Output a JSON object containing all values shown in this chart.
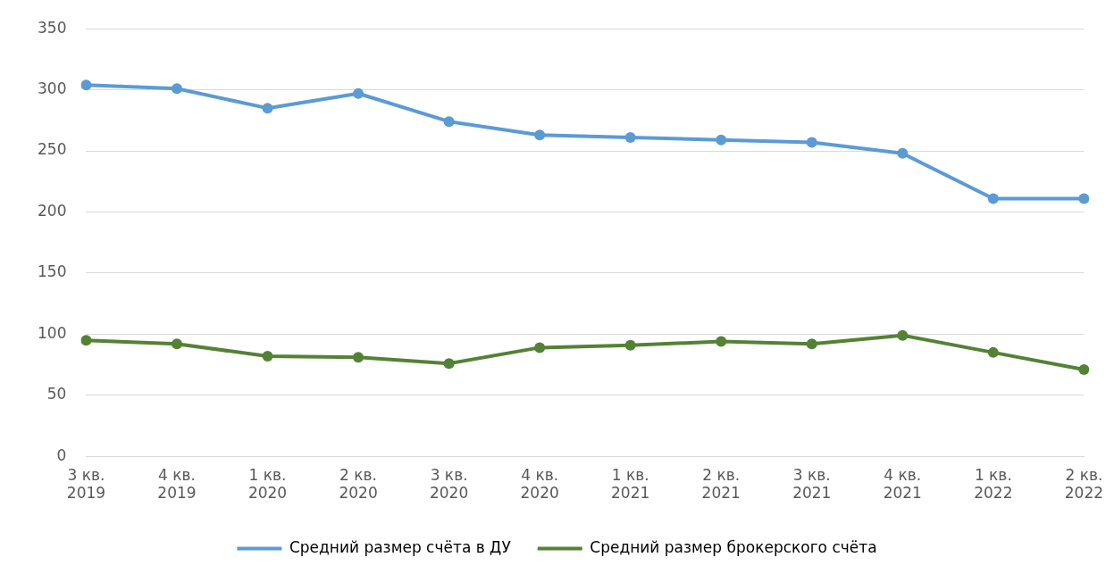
{
  "chart_data": {
    "type": "line",
    "categories": [
      "3 кв. 2019",
      "4 кв. 2019",
      "1 кв. 2020",
      "2 кв. 2020",
      "3 кв. 2020",
      "4 кв. 2020",
      "1 кв. 2021",
      "2 кв. 2021",
      "3 кв. 2021",
      "4 кв. 2021",
      "1 кв. 2022",
      "2 кв. 2022"
    ],
    "series": [
      {
        "name": "Средний размер счёта в ДУ",
        "color": "#5b9bd5",
        "values": [
          304,
          301,
          285,
          297,
          274,
          263,
          261,
          259,
          257,
          248,
          211,
          211
        ]
      },
      {
        "name": "Средний размер брокерского счёта",
        "color": "#548235",
        "values": [
          95,
          92,
          82,
          81,
          76,
          89,
          91,
          94,
          92,
          99,
          85,
          71
        ]
      }
    ],
    "ylim": [
      0,
      350
    ],
    "yticks": [
      0,
      50,
      100,
      150,
      200,
      250,
      300,
      350
    ],
    "grid": "y",
    "legend": "bottom",
    "marker": "circle",
    "line_style": "solid"
  }
}
